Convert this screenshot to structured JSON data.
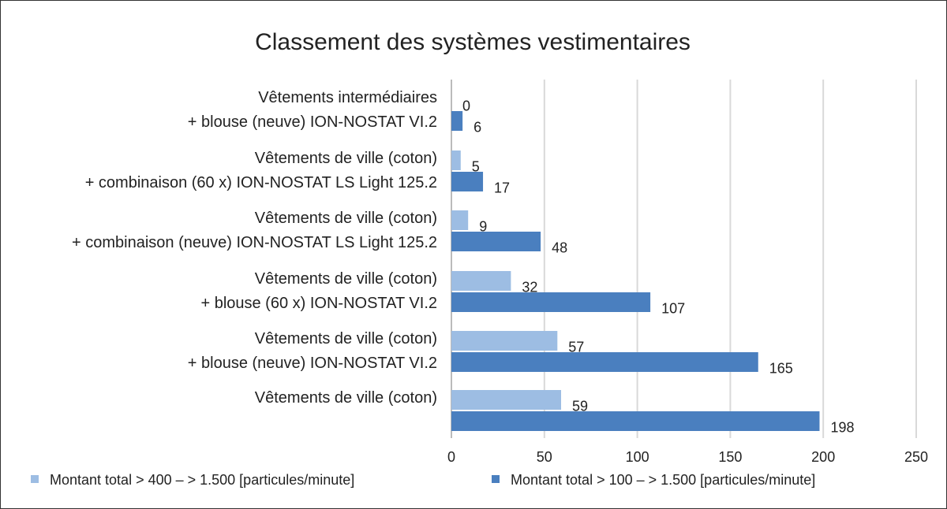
{
  "chart_data": {
    "type": "bar",
    "orientation": "horizontal",
    "title": "Classement des systèmes vestimentaires",
    "categories": [
      [
        "Vêtements intermédiaires",
        "+ blouse (neuve) ION-NOSTAT VI.2"
      ],
      [
        "Vêtements de ville (coton)",
        "+ combinaison (60 x) ION-NOSTAT LS Light 125.2"
      ],
      [
        "Vêtements de ville (coton)",
        "+ combinaison (neuve) ION-NOSTAT LS Light 125.2"
      ],
      [
        "Vêtements de ville (coton)",
        "+ blouse (60 x) ION-NOSTAT VI.2"
      ],
      [
        "Vêtements de ville (coton)",
        "+ blouse (neuve) ION-NOSTAT VI.2"
      ],
      [
        "Vêtements de ville (coton)"
      ]
    ],
    "series": [
      {
        "name": "Montant total > 400 – > 1.500 [particules/minute]",
        "color": "#9dbde3",
        "values": [
          0,
          5,
          9,
          32,
          57,
          59
        ]
      },
      {
        "name": "Montant total > 100 – > 1.500 [particules/minute]",
        "color": "#4a7fbf",
        "values": [
          6,
          17,
          48,
          107,
          165,
          198
        ]
      }
    ],
    "xlim": [
      0,
      250
    ],
    "xticks": [
      "0",
      "50",
      "100",
      "150",
      "200",
      "250"
    ],
    "xlabel": "",
    "ylabel": "",
    "grid": true,
    "legend_position": "bottom"
  }
}
